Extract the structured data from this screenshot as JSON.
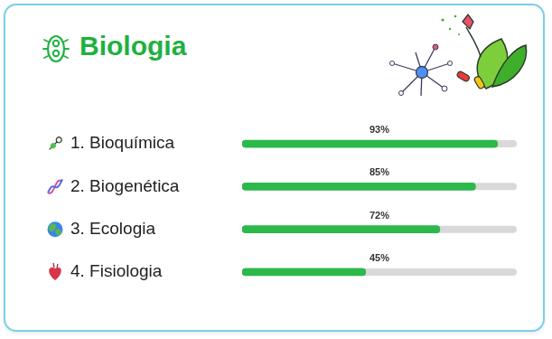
{
  "chart_data": {
    "type": "bar",
    "title": "Biologia",
    "categories": [
      "1. Bioquímica",
      "2. Biogenética",
      "3. Ecologia",
      "4. Fisiologia"
    ],
    "values": [
      93,
      85,
      72,
      45
    ],
    "value_labels": [
      "93%",
      "85%",
      "72%",
      "45%"
    ],
    "color": "#2db84b",
    "orientation": "horizontal",
    "xlim": [
      0,
      100
    ],
    "data_labels": true,
    "tick_labels": "y",
    "grid": false
  }
}
